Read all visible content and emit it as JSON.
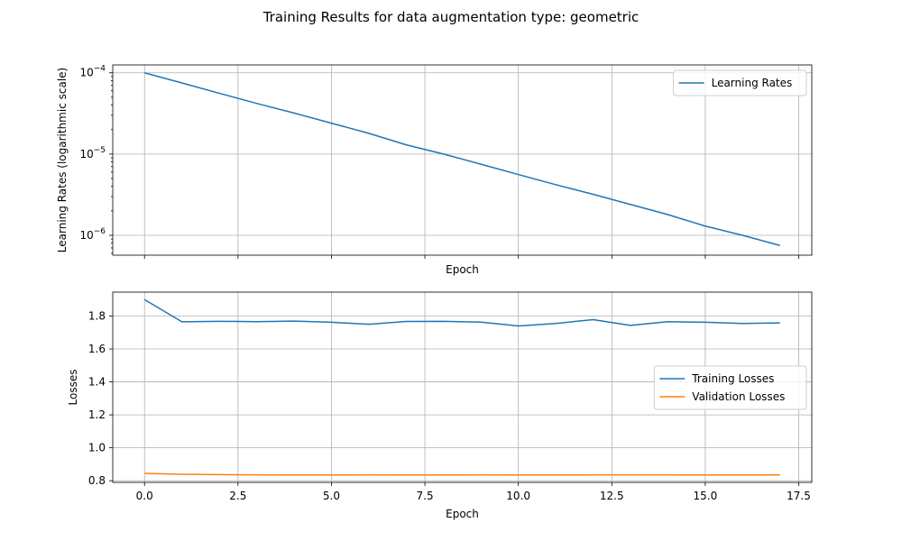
{
  "figure": {
    "suptitle": "Training Results for data augmentation type: geometric"
  },
  "chart_data": [
    {
      "type": "line",
      "xlabel": "Epoch",
      "ylabel": "Learning Rates (logarithmic scale)",
      "yscale": "log",
      "xlim": [
        -0.85,
        17.85
      ],
      "ylim": [
        5.7e-07,
        0.000125
      ],
      "x_ticks": [
        0,
        2.5,
        5,
        7.5,
        10,
        12.5,
        15,
        17.5
      ],
      "x_tick_labels_shown": false,
      "y_ticks": [
        {
          "value": 0.0001,
          "label": "10",
          "exp": "−4"
        },
        {
          "value": 1e-05,
          "label": "10",
          "exp": "−5"
        },
        {
          "value": 1e-06,
          "label": "10",
          "exp": "−6"
        }
      ],
      "grid": true,
      "legend_position": "upper right",
      "x": [
        0,
        1,
        2,
        3,
        4,
        5,
        6,
        7,
        8,
        9,
        10,
        11,
        12,
        13,
        14,
        15,
        16,
        17
      ],
      "series": [
        {
          "name": "Learning Rates",
          "color": "#1f77b4",
          "values": [
            0.0001,
            7.5e-05,
            5.6e-05,
            4.2e-05,
            3.2e-05,
            2.4e-05,
            1.8e-05,
            1.3e-05,
            1e-05,
            7.5e-06,
            5.6e-06,
            4.2e-06,
            3.2e-06,
            2.4e-06,
            1.8e-06,
            1.3e-06,
            1e-06,
            7.5e-07
          ]
        }
      ]
    },
    {
      "type": "line",
      "xlabel": "Epoch",
      "ylabel": "Losses",
      "yscale": "linear",
      "xlim": [
        -0.85,
        17.85
      ],
      "ylim": [
        0.79,
        1.945
      ],
      "x_ticks": [
        0,
        2.5,
        5,
        7.5,
        10,
        12.5,
        15,
        17.5
      ],
      "x_tick_labels": [
        "0.0",
        "2.5",
        "5.0",
        "7.5",
        "10.0",
        "12.5",
        "15.0",
        "17.5"
      ],
      "y_ticks": [
        0.8,
        1.0,
        1.2,
        1.4,
        1.6,
        1.8
      ],
      "y_tick_labels": [
        "0.8",
        "1.0",
        "1.2",
        "1.4",
        "1.6",
        "1.8"
      ],
      "grid": true,
      "legend_position": "center right",
      "x": [
        0,
        1,
        2,
        3,
        4,
        5,
        6,
        7,
        8,
        9,
        10,
        11,
        12,
        13,
        14,
        15,
        16,
        17
      ],
      "series": [
        {
          "name": "Training Losses",
          "color": "#1f77b4",
          "values": [
            1.9,
            1.765,
            1.768,
            1.766,
            1.769,
            1.762,
            1.75,
            1.767,
            1.768,
            1.763,
            1.74,
            1.755,
            1.778,
            1.743,
            1.766,
            1.762,
            1.755,
            1.758
          ]
        },
        {
          "name": "Validation Losses",
          "color": "#ff7f0e",
          "values": [
            0.845,
            0.839,
            0.837,
            0.836,
            0.835,
            0.835,
            0.836,
            0.835,
            0.835,
            0.836,
            0.835,
            0.835,
            0.836,
            0.836,
            0.836,
            0.835,
            0.835,
            0.835
          ]
        }
      ]
    }
  ]
}
